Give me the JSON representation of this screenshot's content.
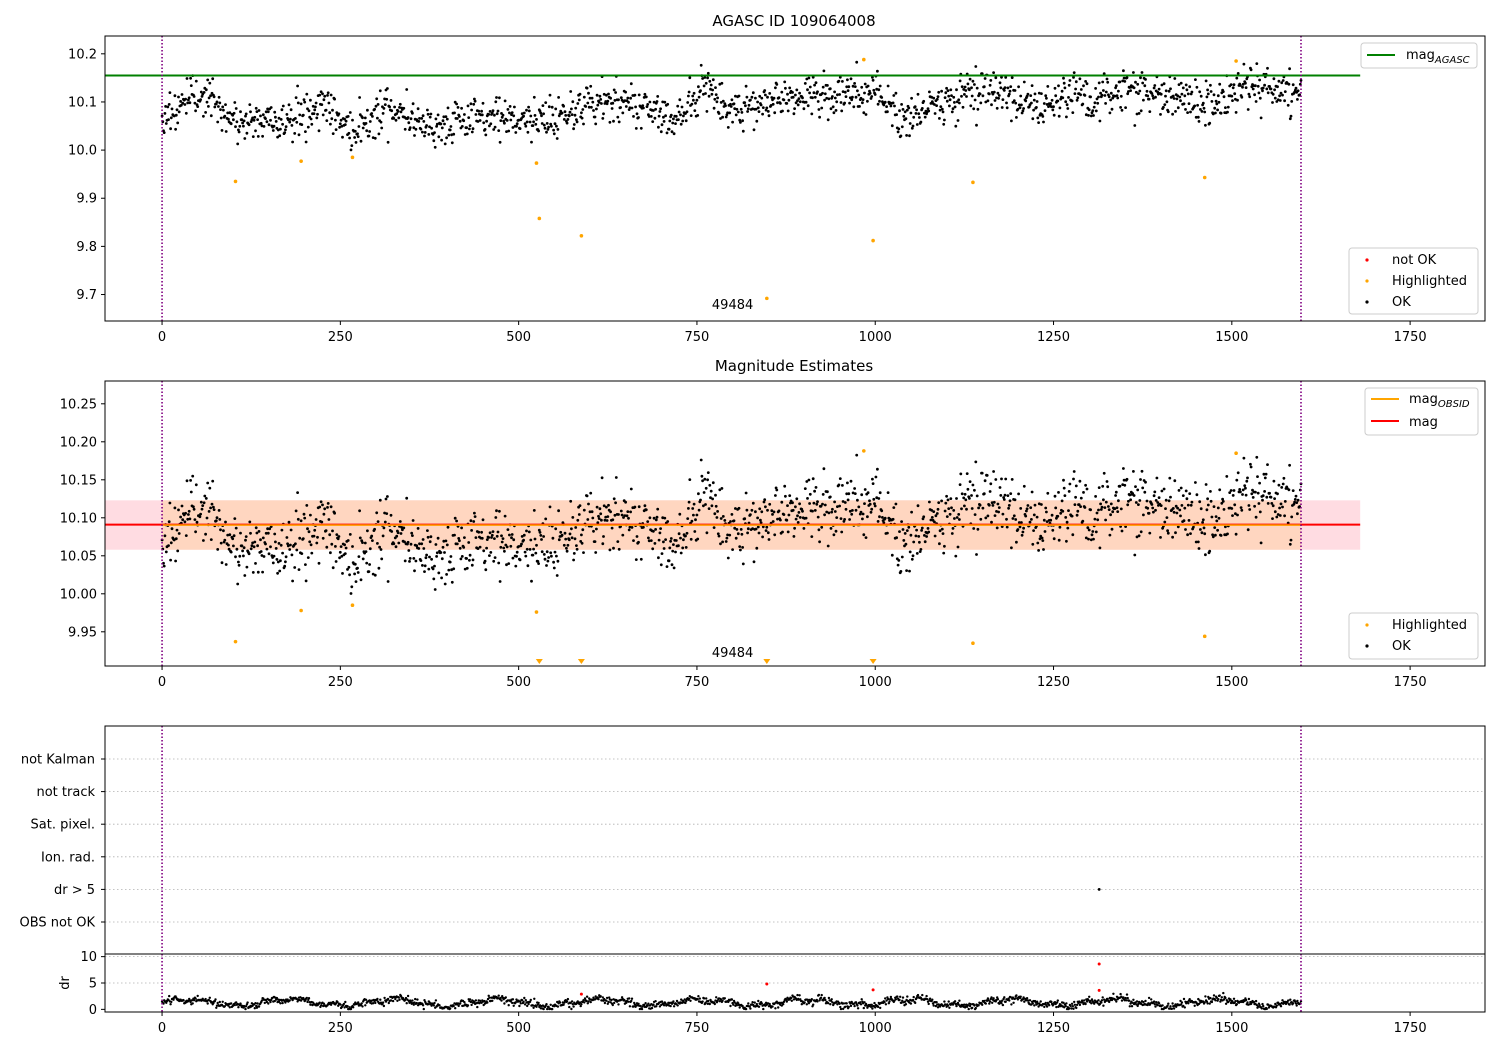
{
  "colors": {
    "ok": "#000000",
    "highlighted": "#ffa500",
    "not_ok": "#ff0000",
    "agasc_line": "#008000",
    "mag_line": "#ff0000",
    "mag_obsid": "#ffa500",
    "band_outer": "#ffc0cb",
    "band_inner": "#ffd5b8",
    "vline": "#800080"
  },
  "chart_data": [
    {
      "id": "agasc",
      "type": "scatter",
      "title": "AGASC ID 109064008",
      "xlim": [
        -80,
        1855
      ],
      "ylim": [
        9.645,
        10.237
      ],
      "xticks": [
        0,
        250,
        500,
        750,
        1000,
        1250,
        1500,
        1750
      ],
      "yticks": [
        9.7,
        9.8,
        9.9,
        10.0,
        10.1,
        10.2
      ],
      "ytick_labels": [
        "9.7",
        "9.8",
        "9.9",
        "10.0",
        "10.1",
        "10.2"
      ],
      "vlines": [
        0,
        1597
      ],
      "hline": {
        "name": "mag_AGASC",
        "y": 10.155,
        "x_range": [
          -80,
          1680
        ]
      },
      "ok_baseline": [
        [
          0,
          10.07
        ],
        [
          60,
          10.12
        ],
        [
          90,
          10.06
        ],
        [
          180,
          10.06
        ],
        [
          230,
          10.1
        ],
        [
          260,
          10.04
        ],
        [
          320,
          10.09
        ],
        [
          380,
          10.05
        ],
        [
          480,
          10.07
        ],
        [
          530,
          10.06
        ],
        [
          610,
          10.1
        ],
        [
          690,
          10.09
        ],
        [
          720,
          10.06
        ],
        [
          760,
          10.13
        ],
        [
          800,
          10.08
        ],
        [
          860,
          10.11
        ],
        [
          940,
          10.11
        ],
        [
          1000,
          10.12
        ],
        [
          1040,
          10.06
        ],
        [
          1090,
          10.1
        ],
        [
          1160,
          10.13
        ],
        [
          1230,
          10.08
        ],
        [
          1280,
          10.12
        ],
        [
          1310,
          10.1
        ],
        [
          1350,
          10.13
        ],
        [
          1420,
          10.11
        ],
        [
          1480,
          10.09
        ],
        [
          1520,
          10.14
        ],
        [
          1597,
          10.12
        ]
      ],
      "highlighted_points": [
        [
          103,
          9.935
        ],
        [
          195,
          9.977
        ],
        [
          267,
          9.985
        ],
        [
          525,
          9.973
        ],
        [
          529,
          9.858
        ],
        [
          588,
          9.822
        ],
        [
          848,
          9.692
        ],
        [
          984,
          10.188
        ],
        [
          997,
          9.812
        ],
        [
          1137,
          9.933
        ],
        [
          1462,
          9.943
        ],
        [
          1506,
          10.185
        ]
      ],
      "annotation": {
        "text": "49484",
        "x": 800,
        "y": 9.67
      },
      "legends": [
        {
          "position": "upper right",
          "entries": [
            {
              "label": "mag",
              "sub": "AGASC",
              "kind": "line",
              "color_key": "agasc_line"
            }
          ]
        },
        {
          "position": "lower right",
          "entries": [
            {
              "label": "not OK",
              "kind": "dot",
              "color_key": "not_ok"
            },
            {
              "label": "Highlighted",
              "kind": "dot",
              "color_key": "highlighted"
            },
            {
              "label": "OK",
              "kind": "dot",
              "color_key": "ok"
            }
          ]
        }
      ]
    },
    {
      "id": "estimates",
      "type": "scatter",
      "title": "Magnitude Estimates",
      "xlim": [
        -80,
        1855
      ],
      "ylim": [
        9.905,
        10.28
      ],
      "xticks": [
        0,
        250,
        500,
        750,
        1000,
        1250,
        1500,
        1750
      ],
      "yticks": [
        9.95,
        10.0,
        10.05,
        10.1,
        10.15,
        10.2,
        10.25
      ],
      "ytick_labels": [
        "9.95",
        "10.00",
        "10.05",
        "10.10",
        "10.15",
        "10.20",
        "10.25"
      ],
      "vlines": [
        0,
        1597
      ],
      "mag": 10.091,
      "band": [
        10.058,
        10.123
      ],
      "band_x_range": [
        -80,
        1680
      ],
      "obsid_x_range": [
        0,
        1597
      ],
      "ok_baseline": [
        [
          0,
          10.07
        ],
        [
          60,
          10.12
        ],
        [
          90,
          10.06
        ],
        [
          180,
          10.06
        ],
        [
          230,
          10.1
        ],
        [
          260,
          10.04
        ],
        [
          320,
          10.09
        ],
        [
          380,
          10.05
        ],
        [
          480,
          10.07
        ],
        [
          530,
          10.06
        ],
        [
          610,
          10.1
        ],
        [
          690,
          10.09
        ],
        [
          720,
          10.06
        ],
        [
          760,
          10.13
        ],
        [
          800,
          10.08
        ],
        [
          860,
          10.11
        ],
        [
          940,
          10.11
        ],
        [
          1000,
          10.12
        ],
        [
          1040,
          10.06
        ],
        [
          1090,
          10.1
        ],
        [
          1160,
          10.13
        ],
        [
          1230,
          10.08
        ],
        [
          1280,
          10.12
        ],
        [
          1310,
          10.1
        ],
        [
          1350,
          10.13
        ],
        [
          1420,
          10.11
        ],
        [
          1480,
          10.09
        ],
        [
          1520,
          10.14
        ],
        [
          1597,
          10.12
        ]
      ],
      "highlighted_points": [
        [
          103,
          9.937
        ],
        [
          195,
          9.978
        ],
        [
          267,
          9.985
        ],
        [
          525,
          9.976
        ],
        [
          984,
          10.188
        ],
        [
          1137,
          9.935
        ],
        [
          1462,
          9.944
        ],
        [
          1506,
          10.185
        ]
      ],
      "offscale_markers": [
        529,
        588,
        848,
        997
      ],
      "annotation": {
        "text": "49484",
        "x": 800,
        "y": 9.917
      },
      "legends": [
        {
          "position": "upper right",
          "entries": [
            {
              "label": "mag",
              "sub": "OBSID",
              "kind": "line",
              "color_key": "mag_obsid"
            },
            {
              "label": "mag",
              "kind": "line",
              "color_key": "mag_line"
            }
          ]
        },
        {
          "position": "lower right",
          "entries": [
            {
              "label": "Highlighted",
              "kind": "dot",
              "color_key": "highlighted"
            },
            {
              "label": "OK",
              "kind": "dot",
              "color_key": "ok"
            }
          ]
        }
      ]
    },
    {
      "id": "flags",
      "type": "scatter",
      "xlim": [
        -80,
        1855
      ],
      "categories": [
        "OBS not OK",
        "dr > 5",
        "Ion. rad.",
        "Sat. pixel.",
        "not track",
        "not Kalman"
      ],
      "vlines": [
        0,
        1597
      ],
      "points": [
        {
          "category": "dr > 5",
          "x": 1314
        }
      ]
    },
    {
      "id": "dr",
      "type": "scatter",
      "ylabel": "dr",
      "xlim": [
        -80,
        1855
      ],
      "ylim": [
        -0.5,
        10.5
      ],
      "xticks": [
        0,
        250,
        500,
        750,
        1000,
        1250,
        1500,
        1750
      ],
      "yticks": [
        0,
        5,
        10
      ],
      "ytick_labels": [
        "0",
        "5",
        "10"
      ],
      "vlines": [
        0,
        1597
      ],
      "red_points": [
        [
          588,
          2.9
        ],
        [
          848,
          4.8
        ],
        [
          997,
          3.7
        ],
        [
          1314,
          8.6
        ],
        [
          1314,
          3.6
        ]
      ]
    }
  ]
}
